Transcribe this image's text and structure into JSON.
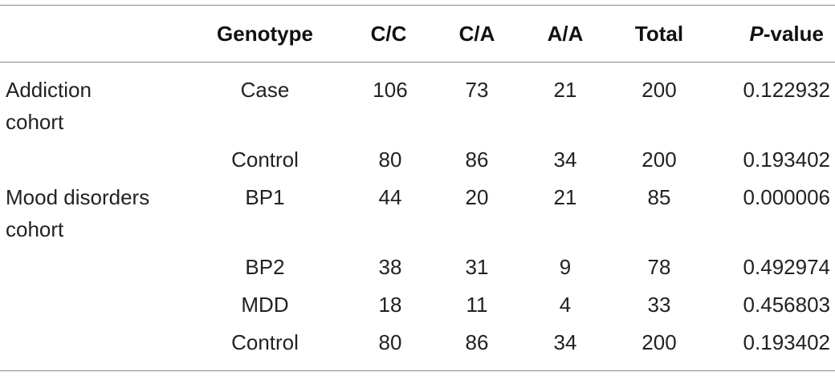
{
  "table": {
    "header": {
      "genotype": "Genotype",
      "cc": "C/C",
      "ca": "C/A",
      "aa": "A/A",
      "total": "Total",
      "p_italic": "P",
      "p_rest": "-value"
    },
    "rows": [
      {
        "cohort_line1": "Addiction",
        "cohort_line2": "cohort",
        "genotype": "Case",
        "cc": "106",
        "ca": "73",
        "aa": "21",
        "total": "200",
        "p": "0.122932"
      },
      {
        "cohort_line1": "",
        "cohort_line2": "",
        "genotype": "Control",
        "cc": "80",
        "ca": "86",
        "aa": "34",
        "total": "200",
        "p": "0.193402"
      },
      {
        "cohort_line1": "Mood disorders",
        "cohort_line2": "cohort",
        "genotype": "BP1",
        "cc": "44",
        "ca": "20",
        "aa": "21",
        "total": "85",
        "p": "0.000006"
      },
      {
        "cohort_line1": "",
        "cohort_line2": "",
        "genotype": "BP2",
        "cc": "38",
        "ca": "31",
        "aa": "9",
        "total": "78",
        "p": "0.492974"
      },
      {
        "cohort_line1": "",
        "cohort_line2": "",
        "genotype": "MDD",
        "cc": "18",
        "ca": "11",
        "aa": "4",
        "total": "33",
        "p": "0.456803"
      },
      {
        "cohort_line1": "",
        "cohort_line2": "",
        "genotype": "Control",
        "cc": "80",
        "ca": "86",
        "aa": "34",
        "total": "200",
        "p": "0.193402"
      }
    ]
  }
}
